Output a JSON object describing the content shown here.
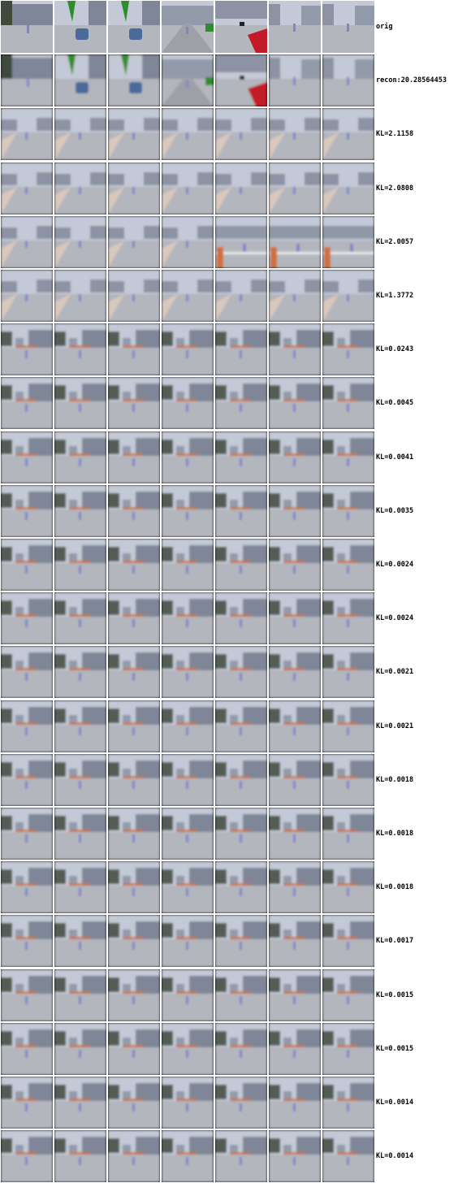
{
  "rows": [
    {
      "label": "orig",
      "kind": "orig",
      "tiles": [
        "building-left",
        "car",
        "car",
        "ped-green",
        "red-car",
        "ped",
        "ped"
      ]
    },
    {
      "label": "recon:20.28564453",
      "kind": "recon",
      "tiles": [
        "building-left",
        "car",
        "car",
        "ped-green",
        "red-car",
        "ped",
        "ped"
      ]
    },
    {
      "label": "KL=2.1158",
      "kind": "kl",
      "tiles": [
        "road",
        "road",
        "road",
        "road",
        "road",
        "road",
        "road"
      ]
    },
    {
      "label": "KL=2.0808",
      "kind": "kl",
      "tiles": [
        "road",
        "road",
        "road",
        "road",
        "road",
        "road",
        "road"
      ]
    },
    {
      "label": "KL=2.0057",
      "kind": "kl",
      "tiles": [
        "road",
        "road",
        "road",
        "road",
        "orange",
        "orange",
        "orange"
      ]
    },
    {
      "label": "KL=1.3772",
      "kind": "kl",
      "tiles": [
        "road",
        "road",
        "road",
        "road",
        "road",
        "road",
        "road"
      ]
    },
    {
      "label": "KL=0.0243",
      "kind": "kl",
      "tiles": [
        "mean",
        "mean",
        "mean",
        "mean",
        "mean",
        "mean",
        "mean"
      ]
    },
    {
      "label": "KL=0.0045",
      "kind": "kl",
      "tiles": [
        "mean",
        "mean",
        "mean",
        "mean",
        "mean",
        "mean",
        "mean"
      ]
    },
    {
      "label": "KL=0.0041",
      "kind": "kl",
      "tiles": [
        "mean",
        "mean",
        "mean",
        "mean",
        "mean",
        "mean",
        "mean"
      ]
    },
    {
      "label": "KL=0.0035",
      "kind": "kl",
      "tiles": [
        "mean",
        "mean",
        "mean",
        "mean",
        "mean",
        "mean",
        "mean"
      ]
    },
    {
      "label": "KL=0.0024",
      "kind": "kl",
      "tiles": [
        "mean",
        "mean",
        "mean",
        "mean",
        "mean",
        "mean",
        "mean"
      ]
    },
    {
      "label": "KL=0.0024",
      "kind": "kl",
      "tiles": [
        "mean",
        "mean",
        "mean",
        "mean",
        "mean",
        "mean",
        "mean"
      ]
    },
    {
      "label": "KL=0.0021",
      "kind": "kl",
      "tiles": [
        "mean",
        "mean",
        "mean",
        "mean",
        "mean",
        "mean",
        "mean"
      ]
    },
    {
      "label": "KL=0.0021",
      "kind": "kl",
      "tiles": [
        "mean",
        "mean",
        "mean",
        "mean",
        "mean",
        "mean",
        "mean"
      ]
    },
    {
      "label": "KL=0.0018",
      "kind": "kl",
      "tiles": [
        "mean",
        "mean",
        "mean",
        "mean",
        "mean",
        "mean",
        "mean"
      ]
    },
    {
      "label": "KL=0.0018",
      "kind": "kl",
      "tiles": [
        "mean",
        "mean",
        "mean",
        "mean",
        "mean",
        "mean",
        "mean"
      ]
    },
    {
      "label": "KL=0.0018",
      "kind": "kl",
      "tiles": [
        "mean",
        "mean",
        "mean",
        "mean",
        "mean",
        "mean",
        "mean"
      ]
    },
    {
      "label": "KL=0.0017",
      "kind": "kl",
      "tiles": [
        "mean",
        "mean",
        "mean",
        "mean",
        "mean",
        "mean",
        "mean"
      ]
    },
    {
      "label": "KL=0.0015",
      "kind": "kl",
      "tiles": [
        "mean",
        "mean",
        "mean",
        "mean",
        "mean",
        "mean",
        "mean"
      ]
    },
    {
      "label": "KL=0.0015",
      "kind": "kl",
      "tiles": [
        "mean",
        "mean",
        "mean",
        "mean",
        "mean",
        "mean",
        "mean"
      ]
    },
    {
      "label": "KL=0.0014",
      "kind": "kl",
      "tiles": [
        "mean",
        "mean",
        "mean",
        "mean",
        "mean",
        "mean",
        "mean"
      ]
    },
    {
      "label": "KL=0.0014",
      "kind": "kl",
      "tiles": [
        "mean",
        "mean",
        "mean",
        "mean",
        "mean",
        "mean",
        "mean"
      ]
    }
  ],
  "colors": {
    "sky": "#c3c9d6",
    "road": "#b4b6bd",
    "building": "#7f8697",
    "tree": "#3f4a3d",
    "car": "#4a6a9a",
    "red_car": "#c21a26",
    "orange": "#d2703a",
    "pedestrian": "#7d86c8"
  }
}
